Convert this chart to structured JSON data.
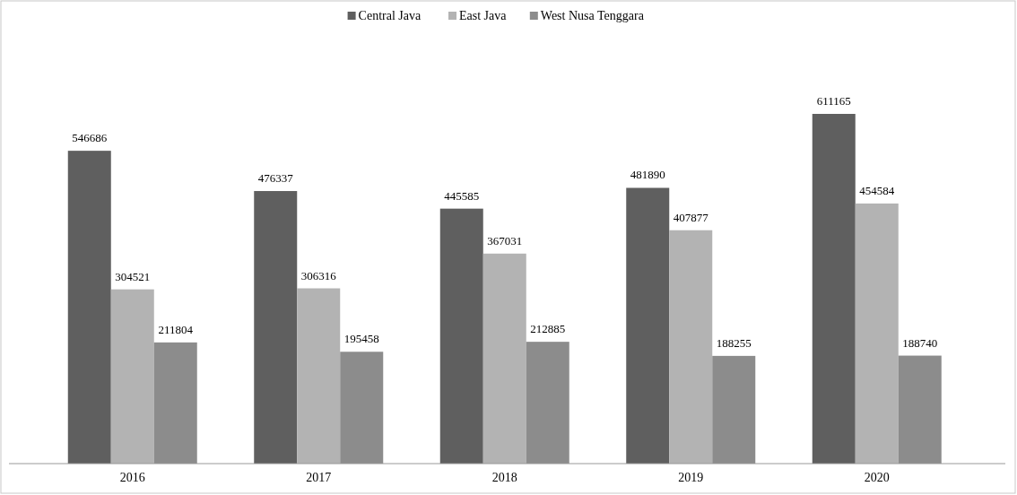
{
  "chart_data": {
    "type": "bar",
    "categories": [
      "2016",
      "2017",
      "2018",
      "2019",
      "2020"
    ],
    "series": [
      {
        "name": "Central Java",
        "color": "#5f5f5f",
        "values": [
          546686,
          476337,
          445585,
          481890,
          611165
        ]
      },
      {
        "name": "East Java",
        "color": "#b3b3b3",
        "values": [
          304521,
          306316,
          367031,
          407877,
          454584
        ]
      },
      {
        "name": "West Nusa Tenggara",
        "color": "#8c8c8c",
        "values": [
          211804,
          195458,
          212885,
          188255,
          188740
        ]
      }
    ],
    "data_labels": true,
    "legend": "top"
  }
}
